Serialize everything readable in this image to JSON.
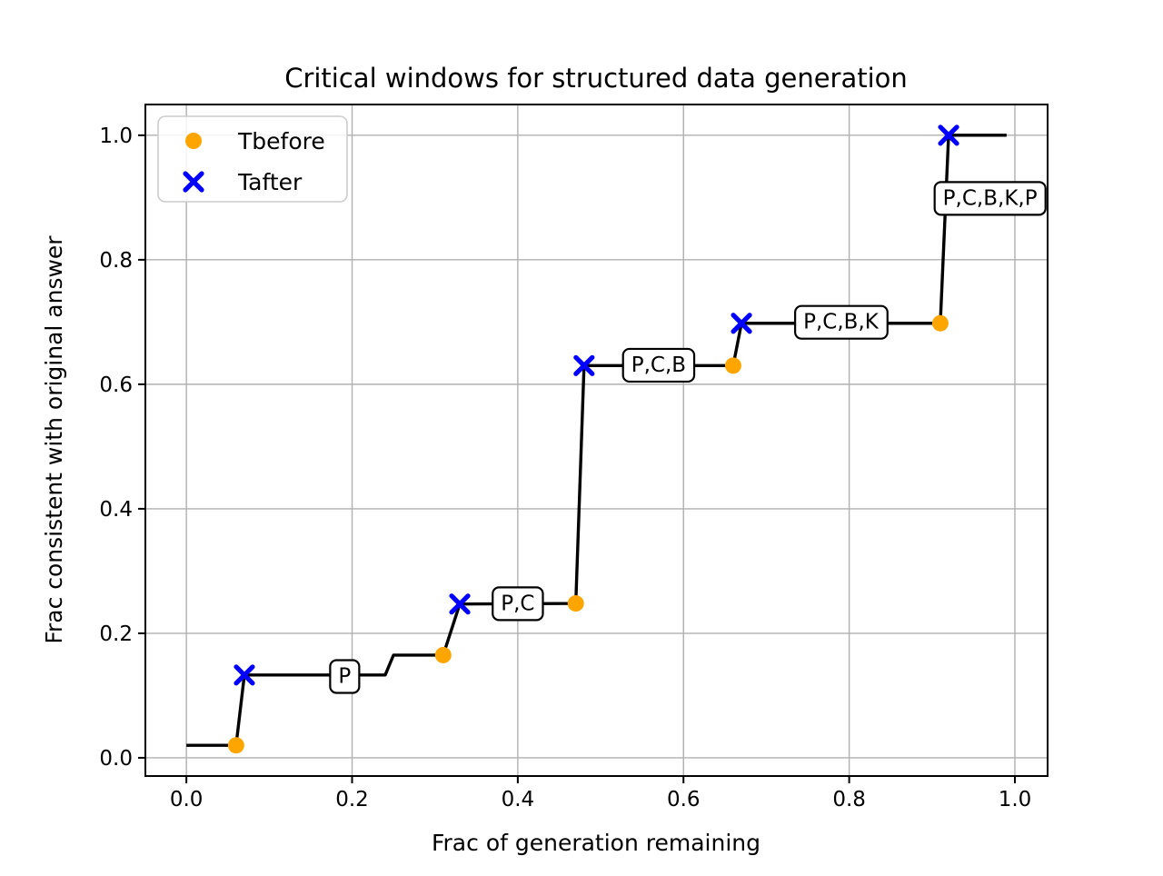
{
  "chart_data": {
    "type": "line",
    "title": "Critical windows for structured data generation",
    "xlabel": "Frac of generation remaining",
    "ylabel": "Frac consistent with original answer",
    "xlim": [
      -0.0495,
      1.0395
    ],
    "ylim": [
      -0.0293,
      1.0494
    ],
    "xticks": [
      0.0,
      0.2,
      0.4,
      0.6,
      0.8,
      1.0
    ],
    "yticks": [
      0.0,
      0.2,
      0.4,
      0.6,
      0.8,
      1.0
    ],
    "grid": true,
    "grid_color": "#b0b0b0",
    "line_color": "#000000",
    "line_points": [
      [
        0.0,
        0.02
      ],
      [
        0.06,
        0.02
      ],
      [
        0.07,
        0.133
      ],
      [
        0.24,
        0.133
      ],
      [
        0.25,
        0.165
      ],
      [
        0.31,
        0.165
      ],
      [
        0.33,
        0.247
      ],
      [
        0.47,
        0.248
      ],
      [
        0.48,
        0.63
      ],
      [
        0.66,
        0.63
      ],
      [
        0.67,
        0.698
      ],
      [
        0.91,
        0.698
      ],
      [
        0.92,
        1.0
      ],
      [
        0.99,
        1.0
      ]
    ],
    "series": [
      {
        "name": "Tbefore",
        "marker": "circle",
        "color": "#FFA500",
        "points": [
          [
            0.06,
            0.02
          ],
          [
            0.31,
            0.165
          ],
          [
            0.47,
            0.248
          ],
          [
            0.66,
            0.63
          ],
          [
            0.91,
            0.698
          ]
        ]
      },
      {
        "name": "Tafter",
        "marker": "x",
        "color": "#0000FF",
        "points": [
          [
            0.07,
            0.133
          ],
          [
            0.33,
            0.247
          ],
          [
            0.48,
            0.63
          ],
          [
            0.67,
            0.698
          ],
          [
            0.92,
            1.0
          ]
        ]
      }
    ],
    "annotations": [
      {
        "label": "P",
        "x": 0.191,
        "y": 0.132
      },
      {
        "label": "P,C",
        "x": 0.4,
        "y": 0.249
      },
      {
        "label": "P,C,B",
        "x": 0.57,
        "y": 0.632
      },
      {
        "label": "P,C,B,K",
        "x": 0.79,
        "y": 0.701
      },
      {
        "label": "P,C,B,K,P",
        "x": 0.97,
        "y": 0.9
      }
    ],
    "legend": {
      "position": "upper left",
      "entries": [
        {
          "label": "Tbefore",
          "marker": "circle",
          "color": "#FFA500"
        },
        {
          "label": "Tafter",
          "marker": "x",
          "color": "#0000FF"
        }
      ]
    }
  }
}
